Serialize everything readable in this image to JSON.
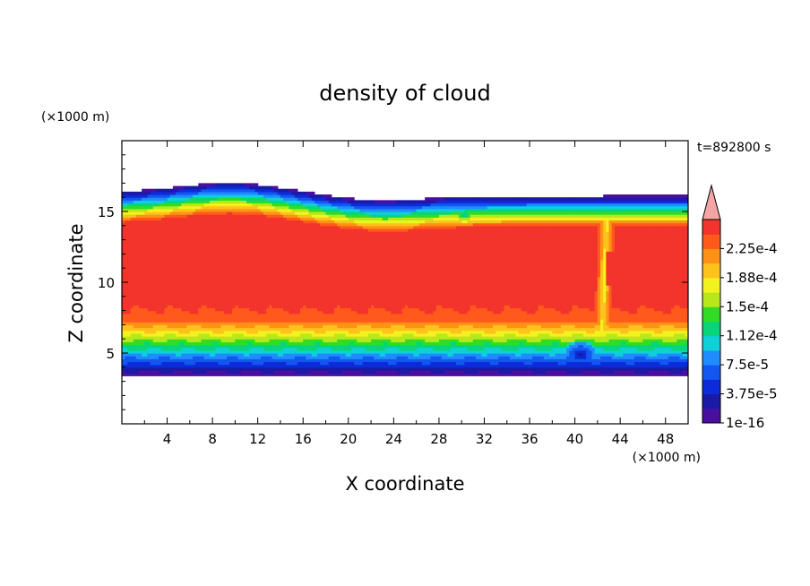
{
  "chart_data": {
    "type": "heatmap",
    "title": "density of cloud",
    "time_label": "t=892800 s",
    "xlabel": "X coordinate",
    "ylabel": "Z coordinate",
    "x_unit": "(×1000 m)",
    "z_unit": "(×1000 m)",
    "xlim": [
      0,
      50
    ],
    "ylim": [
      0,
      20
    ],
    "x_ticks": [
      "4",
      "8",
      "12",
      "16",
      "20",
      "24",
      "28",
      "32",
      "36",
      "40",
      "44",
      "48"
    ],
    "y_ticks": [
      "5",
      "10",
      "15"
    ],
    "x_tick_values": [
      4,
      8,
      12,
      16,
      20,
      24,
      28,
      32,
      36,
      40,
      44,
      48
    ],
    "y_tick_values": [
      5,
      10,
      15
    ],
    "colorbar": {
      "labels": [
        "2.25e-4",
        "1.88e-4",
        "1.5e-4",
        "1.12e-4",
        "7.5e-5",
        "3.75e-5",
        "1e-16"
      ],
      "levels": [
        1e-16,
        1.875e-05,
        3.75e-05,
        5.625e-05,
        7.5e-05,
        9.375e-05,
        0.0001125,
        0.00013125,
        0.00015,
        0.00016875,
        0.0001875,
        0.00020625,
        0.000225,
        0.00024375
      ],
      "colors": [
        "#4b0fa0",
        "#1a1aa6",
        "#0b2cd8",
        "#1457f0",
        "#1f8dff",
        "#0ed0d8",
        "#08d47a",
        "#32dc24",
        "#b8e81c",
        "#f2f21e",
        "#ffc21c",
        "#ff9216",
        "#ff5a1c",
        "#f2342c"
      ],
      "overflow_color": "#f4a4a4"
    },
    "field_summary": {
      "cloud_base_z": 3.5,
      "cloud_top_z": [
        16.2,
        17.2
      ],
      "core_value": 0.00023,
      "core_z_range": [
        7.5,
        14.0
      ]
    }
  }
}
